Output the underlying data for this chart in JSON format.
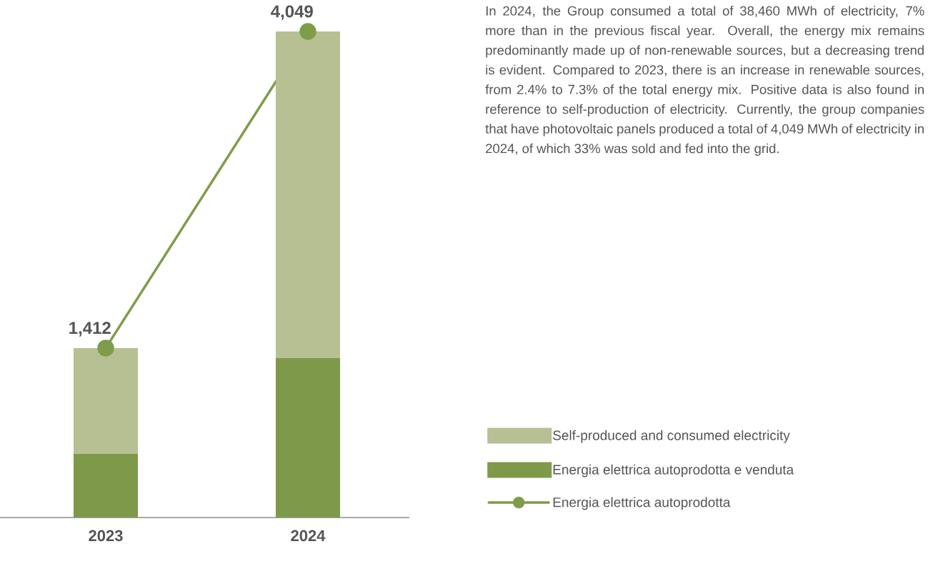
{
  "chart_data": {
    "type": "bar",
    "stacked": true,
    "categories": [
      "2023",
      "2024"
    ],
    "series": [
      {
        "name": "Energia elettrica autoprodotta e venduta",
        "color": "#7f994a",
        "values": [
          530,
          1330
        ]
      },
      {
        "name": "Self-produced and consumed electricity",
        "color": "#b6c093",
        "values": [
          882,
          2719
        ]
      },
      {
        "name": "Energia elettrica autoprodotta",
        "color": "#7f9c4a",
        "type": "line",
        "marker": "circle",
        "values": [
          1412,
          4049
        ],
        "value_labels": [
          "1,412",
          "4,049"
        ]
      }
    ],
    "legend": "right",
    "annotations": [
      "In 2024, the Group consumed a total of 38,460 MWh of electricity, 7% more than in the previous fiscal year. Overall, the energy mix remains predominantly made up of non-renewable sources, but a decreasing trend is evident. Compared to 2023, there is an increase in renewable sources, from 2.4% to 7.3% of the total energy mix. Positive data is also found in reference to self-production of electricity. Currently, the group companies that have photovoltaic panels produced a total of 4,049 MWh of electricity in 2024, of which 33% was sold and fed into the grid."
    ]
  }
}
